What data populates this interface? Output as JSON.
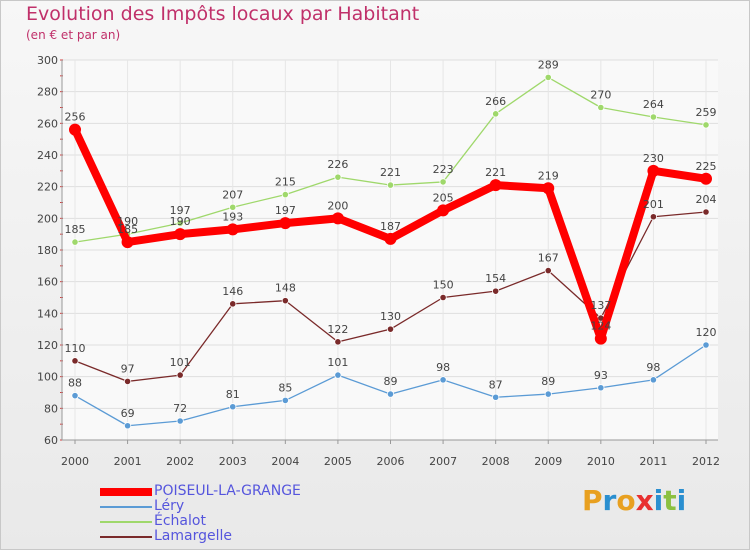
{
  "header": {
    "title": "Evolution des Impôts locaux par Habitant",
    "subtitle": "(en € et par an)"
  },
  "logo": {
    "text": "Proxiti",
    "letters": [
      "P",
      "r",
      "o",
      "x",
      "i",
      "t",
      "i"
    ]
  },
  "chart_data": {
    "type": "line",
    "title": "Evolution des Impôts locaux par Habitant",
    "subtitle": "(en € et par an)",
    "xlabel": "",
    "ylabel": "",
    "ylim": [
      60,
      300
    ],
    "yticks": [
      60,
      80,
      100,
      120,
      140,
      160,
      180,
      200,
      220,
      240,
      260,
      280,
      300
    ],
    "grid": true,
    "legend_position": "bottom-left",
    "x": [
      "2000",
      "2001",
      "2002",
      "2003",
      "2004",
      "2005",
      "2006",
      "2007",
      "2008",
      "2009",
      "2010",
      "2011",
      "2012"
    ],
    "series": [
      {
        "name": "Léry",
        "color": "#5b9bd5",
        "values": [
          88,
          69,
          72,
          81,
          85,
          101,
          89,
          98,
          87,
          89,
          93,
          98,
          120
        ]
      },
      {
        "name": "Échalot",
        "color": "#9fd86b",
        "values": [
          185,
          190,
          197,
          207,
          215,
          226,
          221,
          223,
          266,
          289,
          270,
          264,
          259
        ]
      },
      {
        "name": "Lamargelle",
        "color": "#7a2a2a",
        "values": [
          110,
          97,
          101,
          146,
          148,
          122,
          130,
          150,
          154,
          167,
          137,
          201,
          204
        ]
      },
      {
        "name": "POISEUL-LA-GRANGE",
        "color": "#ff0000",
        "values": [
          256,
          185,
          190,
          193,
          197,
          200,
          187,
          205,
          221,
          219,
          124,
          230,
          225
        ]
      }
    ]
  }
}
